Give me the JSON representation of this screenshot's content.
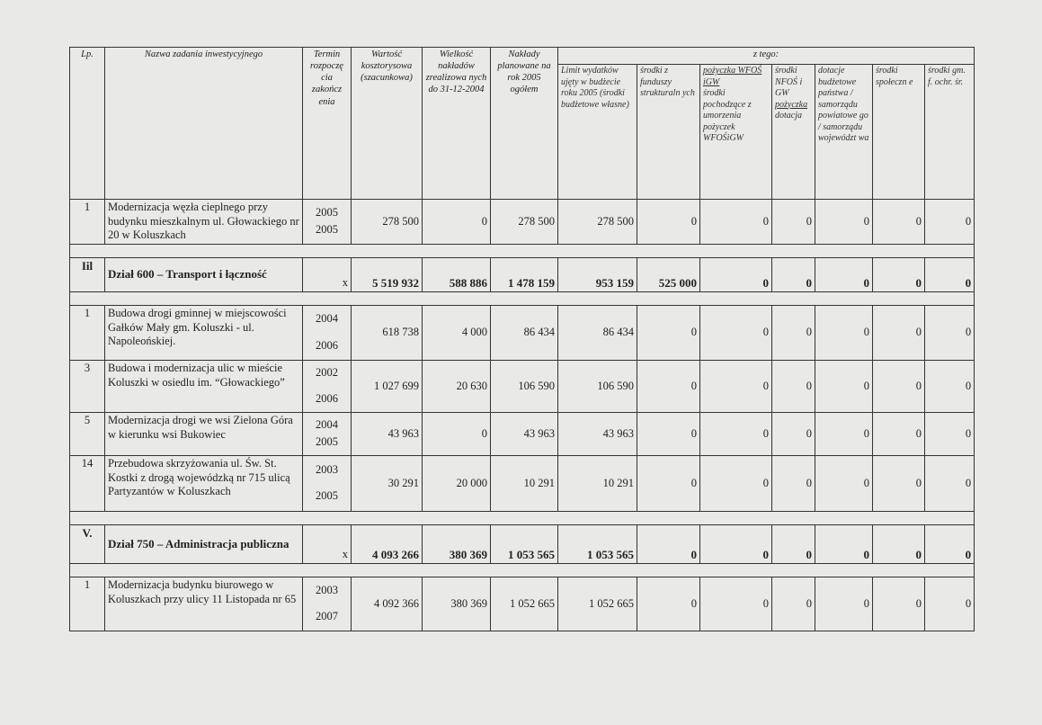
{
  "header": {
    "lp": "Lp.",
    "name": "Nazwa zadania inwestycyjnego",
    "term": "Termin rozpoczę cia zakończ enia",
    "value": "Wartość kosztorysowa (szacunkowa)",
    "done": "Wielkość nakładów zrealizowa nych do 31-12-2004",
    "planned": "Nakłady planowane na rok 2005 ogółem",
    "of_which": "z tego:",
    "sub": [
      "Limit wydatków ujęty w budżecie roku 2005 (środki budżetowe własne)",
      "środki z funduszy strukturaln ych",
      "pożyczka WFOŚ iGW",
      "środki pochodzące z umorzenia pożyczek WFOŚiGW",
      "środki NFOŚ i GW",
      "pożyczka",
      "dotacja",
      "dotacje budżetowe państwa / samorządu powiatowe go / samorządu województ wa",
      "środki społeczn e",
      "środki gm. f. ochr. śr."
    ]
  },
  "rows": [
    {
      "lp": "1",
      "name": "Modernizacja węzła cieplnego przy budynku mieszkalnym ul. Głowackiego nr 20 w Koluszkach",
      "start": "2005",
      "end": "2005",
      "v": [
        "278 500",
        "0",
        "278 500",
        "278 500",
        "0",
        "0",
        "0",
        "0",
        "0",
        "0"
      ]
    },
    {
      "section": true,
      "lp": "Iil",
      "name": "Dział 600 – Transport i łączność",
      "term": "x",
      "v": [
        "5 519 932",
        "588 886",
        "1 478 159",
        "953 159",
        "525 000",
        "0",
        "0",
        "0",
        "0",
        "0"
      ]
    },
    {
      "lp": "1",
      "name": "Budowa drogi gminnej w miejscowości Gałków Mały gm. Koluszki - ul. Napoleońskiej.",
      "start": "2004",
      "end": "2006",
      "v": [
        "618 738",
        "4 000",
        "86 434",
        "86 434",
        "0",
        "0",
        "0",
        "0",
        "0",
        "0"
      ]
    },
    {
      "lp": "3",
      "name": "Budowa i modernizacja ulic w mieście Koluszki w osiedlu im. “Głowackiego”",
      "start": "2002",
      "end": "2006",
      "v": [
        "1 027 699",
        "20 630",
        "106 590",
        "106 590",
        "0",
        "0",
        "0",
        "0",
        "0",
        "0"
      ]
    },
    {
      "lp": "5",
      "name": "Modernizacja drogi we wsi Zielona Góra w kierunku wsi Bukowiec",
      "start": "2004",
      "end": "2005",
      "v": [
        "43 963",
        "0",
        "43 963",
        "43 963",
        "0",
        "0",
        "0",
        "0",
        "0",
        "0"
      ]
    },
    {
      "lp": "14",
      "name": "Przebudowa skrzyżowania ul. Św. St. Kostki z drogą wojewódzką nr 715 ulicą Partyzantów w Koluszkach",
      "start": "2003",
      "end": "2005",
      "v": [
        "30 291",
        "20 000",
        "10 291",
        "10 291",
        "0",
        "0",
        "0",
        "0",
        "0",
        "0"
      ]
    },
    {
      "section": true,
      "lp": "V.",
      "name": "Dział 750 – Administracja publiczna",
      "term": "x",
      "v": [
        "4 093 266",
        "380 369",
        "1 053 565",
        "1 053 565",
        "0",
        "0",
        "0",
        "0",
        "0",
        "0"
      ]
    },
    {
      "lp": "1",
      "name": "Modernizacja budynku biurowego w Koluszkach przy ulicy 11 Listopada nr 65",
      "start": "2003",
      "end": "2007",
      "v": [
        "4 092 366",
        "380 369",
        "1 052 665",
        "1 052 665",
        "0",
        "0",
        "0",
        "0",
        "0",
        "0"
      ]
    }
  ]
}
